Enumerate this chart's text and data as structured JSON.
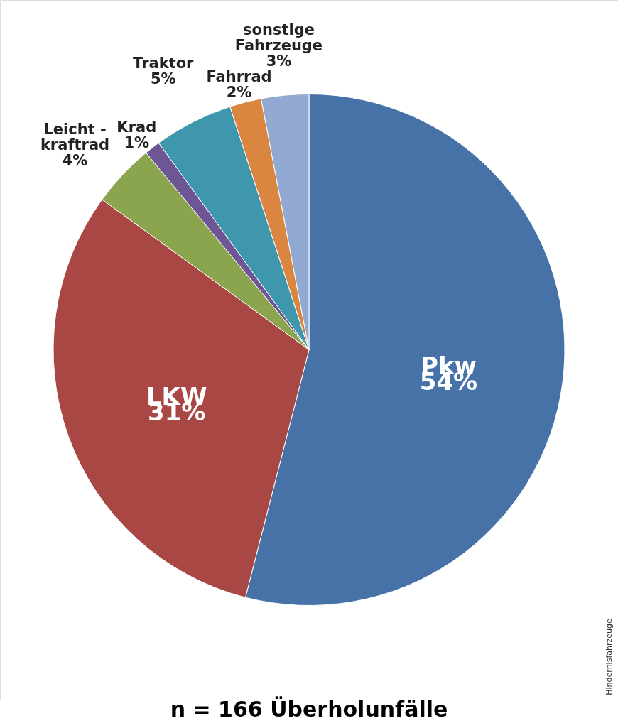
{
  "chart_data": {
    "type": "pie",
    "title": "n = 166 Überholunfälle",
    "categories": [
      "Pkw",
      "LKW",
      "Leicht -\nkraftrad",
      "Krad",
      "Traktor",
      "Fahrrad",
      "sonstige\nFahrzeuge"
    ],
    "values": [
      54,
      31,
      4,
      1,
      5,
      2,
      3
    ],
    "value_labels": [
      "54%",
      "31%",
      "4%",
      "1%",
      "5%",
      "2%",
      "3%"
    ],
    "colors": [
      "#4672a8",
      "#a84744",
      "#8aa54e",
      "#6e5594",
      "#3f97ad",
      "#db8640",
      "#92a9d1"
    ],
    "legend": false,
    "annotations": [
      "Hindernisfahrzeuge"
    ]
  }
}
